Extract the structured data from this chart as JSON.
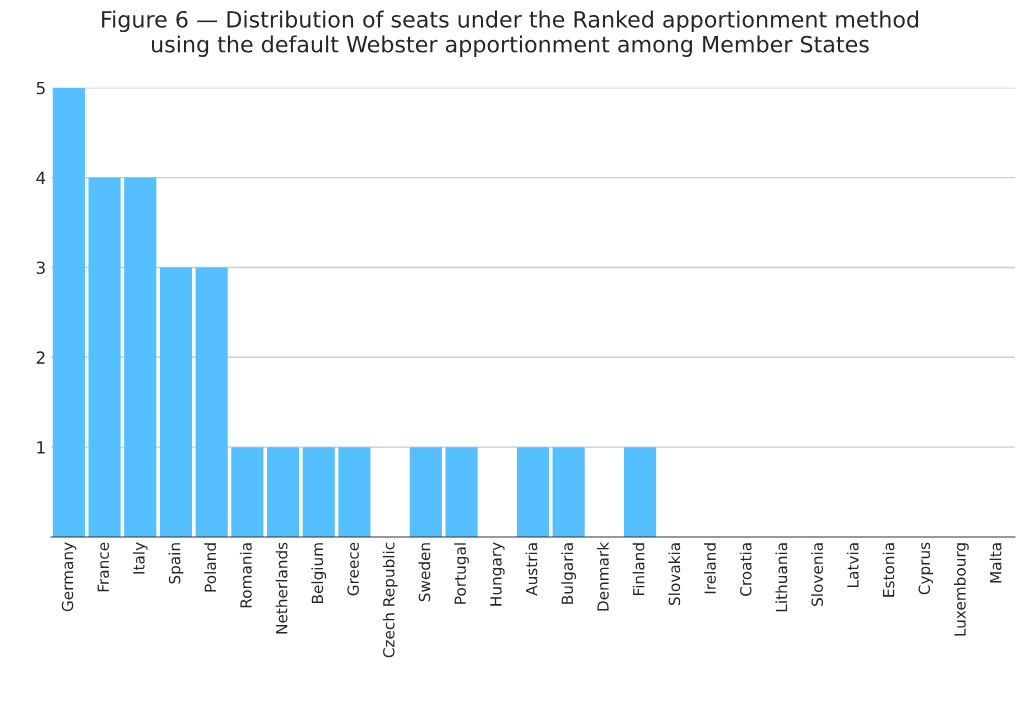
{
  "chart_data": {
    "type": "bar",
    "title": "Figure 6 — Distribution of seats under the Ranked apportionment method\nusing the default Webster apportionment among Member States",
    "categories": [
      "Germany",
      "France",
      "Italy",
      "Spain",
      "Poland",
      "Romania",
      "Netherlands",
      "Belgium",
      "Greece",
      "Czech Republic",
      "Sweden",
      "Portugal",
      "Hungary",
      "Austria",
      "Bulgaria",
      "Denmark",
      "Finland",
      "Slovakia",
      "Ireland",
      "Croatia",
      "Lithuania",
      "Slovenia",
      "Latvia",
      "Estonia",
      "Cyprus",
      "Luxembourg",
      "Malta"
    ],
    "values": [
      5,
      4,
      4,
      3,
      3,
      1,
      1,
      1,
      1,
      0,
      1,
      1,
      0,
      1,
      1,
      0,
      1,
      0,
      0,
      0,
      0,
      0,
      0,
      0,
      0,
      0,
      0
    ],
    "color": "#55bfff",
    "ylim": [
      0,
      5
    ],
    "yticks": [
      1,
      2,
      3,
      4,
      5
    ],
    "grid": "y"
  }
}
